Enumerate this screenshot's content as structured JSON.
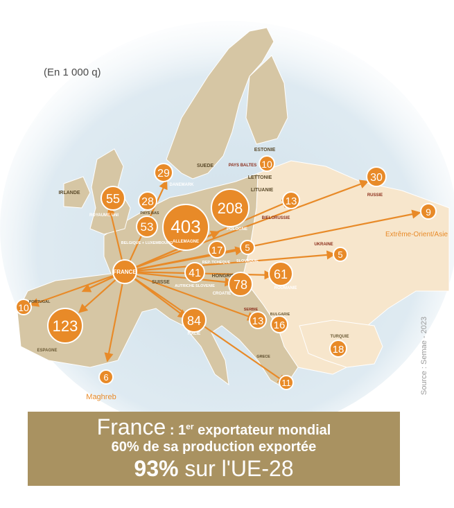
{
  "unit_note": "(En 1 000 q)",
  "source": "Source : Semae - 2023",
  "colors": {
    "sea": "#d3e3ec",
    "land_dest": "#f7e6cc",
    "land_other": "#d6c6a4",
    "accent": "#e88a28",
    "banner": "#a99261"
  },
  "origin_label": "FRANCE",
  "flows": [
    {
      "id": "allemagne",
      "value": "403",
      "label": "ALLEMAGNE"
    },
    {
      "id": "pologne",
      "value": "208",
      "label": "POLOGNE"
    },
    {
      "id": "espagne",
      "value": "123",
      "label": "ESPAGNE"
    },
    {
      "id": "italie",
      "value": "84",
      "label": "ITALIE"
    },
    {
      "id": "croatie",
      "value": "78",
      "label": "CROATIE"
    },
    {
      "id": "roumanie",
      "value": "61",
      "label": "ROUMANIE"
    },
    {
      "id": "royaume-uni",
      "value": "55",
      "label": "ROYAUME UNI"
    },
    {
      "id": "belgique",
      "value": "53",
      "label": "BELGIQUE + LUXEMBOURG"
    },
    {
      "id": "autriche",
      "value": "41",
      "label": "AUTRICHE SLOVENIE"
    },
    {
      "id": "russie",
      "value": "30",
      "label": "RUSSIE"
    },
    {
      "id": "danemark",
      "value": "29",
      "label": "DANEMARK"
    },
    {
      "id": "pays-bas",
      "value": "28",
      "label": "PAYS BAS"
    },
    {
      "id": "turquie",
      "value": "18",
      "label": "TURQUIE"
    },
    {
      "id": "tcheque",
      "value": "17",
      "label": "REP. TCHEQUE"
    },
    {
      "id": "bulgarie",
      "value": "16",
      "label": "BULGARIE"
    },
    {
      "id": "bielorussie",
      "value": "13",
      "label": "BIELORUSSIE"
    },
    {
      "id": "serbie",
      "value": "13",
      "label": "SERBIE"
    },
    {
      "id": "grece",
      "value": "11",
      "label": "GRECE"
    },
    {
      "id": "pays-baltes",
      "value": "10",
      "label": "PAYS BALTES"
    },
    {
      "id": "portugal",
      "value": "10",
      "label": "PORTUGAL"
    },
    {
      "id": "extreme-orient",
      "value": "9",
      "label": "Extrême-Orient/Asie"
    },
    {
      "id": "maghreb",
      "value": "6",
      "label": "Maghreb"
    },
    {
      "id": "slovaquie",
      "value": "5",
      "label": "SLOVAQUIE"
    },
    {
      "id": "ukraine",
      "value": "5",
      "label": "UKRAINE"
    }
  ],
  "map_labels": [
    "IRLANDE",
    "SUEDE",
    "ESTONIE",
    "LETTONIE",
    "LITUANIE",
    "SUISSE",
    "HONGRIE"
  ],
  "banner": {
    "country": "France",
    "sep": " : ",
    "rank": "1",
    "rank_sup": "er",
    "line1_rest": " exportateur mondial",
    "line2": "60% de sa production exportée",
    "pct": "93%",
    "line3_rest": " sur l'UE-28"
  }
}
